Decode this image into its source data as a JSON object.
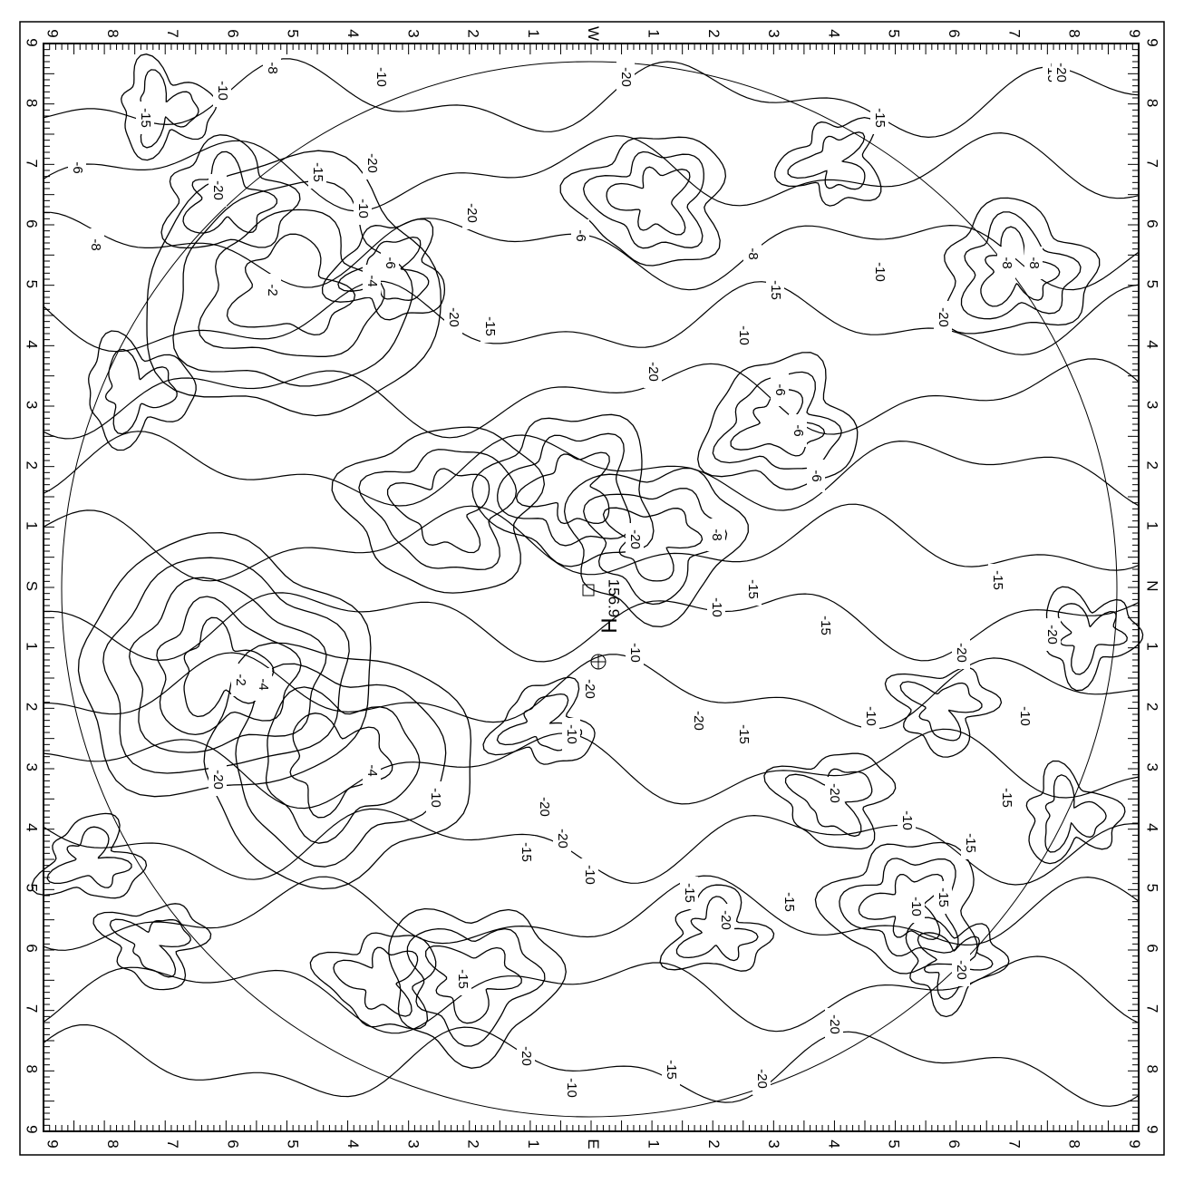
{
  "border": {
    "top": [
      "9",
      "8",
      "7",
      "6",
      "5",
      "4",
      "3",
      "2",
      "1",
      "W",
      "1",
      "2",
      "3",
      "4",
      "5",
      "6",
      "7",
      "8",
      "9"
    ],
    "bottom": [
      "9",
      "8",
      "7",
      "6",
      "5",
      "4",
      "3",
      "2",
      "1",
      "E",
      "1",
      "2",
      "3",
      "4",
      "5",
      "6",
      "7",
      "8",
      "9"
    ],
    "left": [
      "9",
      "8",
      "7",
      "6",
      "5",
      "4",
      "3",
      "2",
      "1",
      "S",
      "1",
      "2",
      "3",
      "4",
      "5",
      "6",
      "7",
      "8",
      "9"
    ],
    "right": [
      "9",
      "8",
      "7",
      "6",
      "5",
      "4",
      "3",
      "2",
      "1",
      "N",
      "1",
      "2",
      "3",
      "4",
      "5",
      "6",
      "7",
      "8",
      "9"
    ]
  },
  "center": {
    "value": "156.9",
    "high": "H"
  },
  "contour_labels": [
    "-10",
    "-20",
    "-15",
    "-8",
    "-10",
    "-20",
    "-15",
    "-20",
    "-15",
    "-20",
    "-6",
    "-8",
    "-15",
    "-20",
    "-10",
    "-6",
    "-2",
    "-4",
    "-6",
    "-20",
    "-15",
    "-10",
    "-6",
    "-20",
    "-8",
    "-10",
    "-15",
    "-20",
    "-8",
    "-8",
    "-6",
    "-6",
    "-8",
    "-20",
    "-15",
    "-10",
    "-15",
    "-20",
    "-10",
    "-2",
    "-4",
    "-20",
    "-10",
    "-4",
    "-20",
    "-20",
    "-10",
    "-10",
    "-20",
    "-15",
    "-10",
    "-10",
    "-20",
    "-15",
    "-10",
    "-20",
    "-15",
    "-15",
    "-20",
    "-15",
    "-20",
    "-15",
    "-20",
    "-15",
    "-20",
    "-10",
    "-20",
    "-15",
    "-10",
    "-20",
    "-15",
    "-15"
  ]
}
